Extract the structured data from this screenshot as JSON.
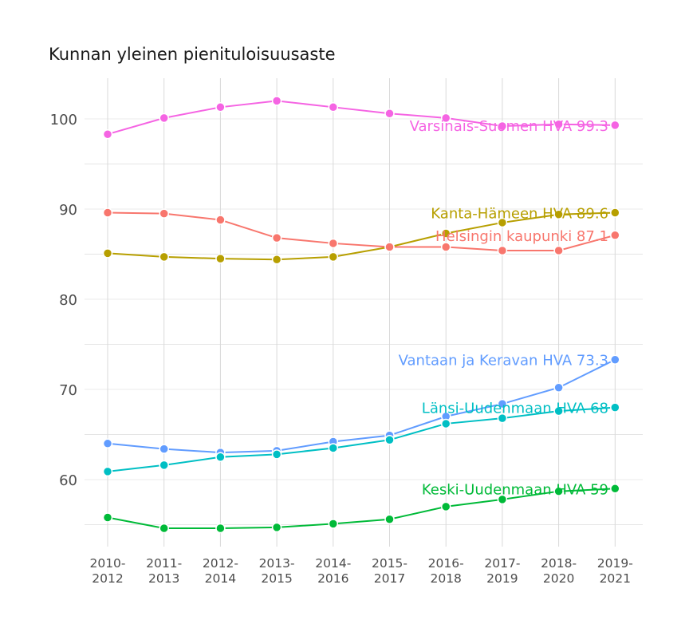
{
  "chart_data": {
    "type": "line",
    "title": "Kunnan yleinen pienituloisuusaste",
    "xlabel": "",
    "ylabel": "",
    "categories": [
      {
        "line1": "2010-",
        "line2": "2012"
      },
      {
        "line1": "2011-",
        "line2": "2013"
      },
      {
        "line1": "2012-",
        "line2": "2014"
      },
      {
        "line1": "2013-",
        "line2": "2015"
      },
      {
        "line1": "2014-",
        "line2": "2016"
      },
      {
        "line1": "2015-",
        "line2": "2017"
      },
      {
        "line1": "2016-",
        "line2": "2018"
      },
      {
        "line1": "2017-",
        "line2": "2019"
      },
      {
        "line1": "2018-",
        "line2": "2020"
      },
      {
        "line1": "2019-",
        "line2": "2021"
      }
    ],
    "yticks": [
      60,
      70,
      80,
      90,
      100
    ],
    "ylim": [
      52.5,
      105
    ],
    "grid": true,
    "legend": "direct labels at line ends",
    "series": [
      {
        "name": "Varsinais-Suomen HVA",
        "label": "Varsinais-Suomen HVA 99.3",
        "color": "#f564e3",
        "values": [
          98.3,
          100.1,
          101.3,
          102.0,
          101.3,
          100.6,
          100.1,
          99.2,
          99.4,
          99.3
        ]
      },
      {
        "name": "Kanta-Hämeen HVA",
        "label": "Kanta-Hämeen HVA 89.6",
        "color": "#b79f00",
        "values": [
          85.1,
          84.7,
          84.5,
          84.4,
          84.7,
          85.8,
          87.3,
          88.5,
          89.4,
          89.6
        ]
      },
      {
        "name": "Helsingin kaupunki",
        "label": "Helsingin kaupunki 87.1",
        "color": "#f8766d",
        "values": [
          89.6,
          89.5,
          88.8,
          86.8,
          86.2,
          85.8,
          85.8,
          85.4,
          85.4,
          87.1
        ]
      },
      {
        "name": "Vantaan ja Keravan HVA",
        "label": "Vantaan ja Keravan HVA 73.3",
        "color": "#619cff",
        "values": [
          64.0,
          63.4,
          63.0,
          63.2,
          64.2,
          64.9,
          67.0,
          68.4,
          70.2,
          73.3
        ]
      },
      {
        "name": "Länsi-Uudenmaan HVA",
        "label": "Länsi-Uudenmaan HVA 68",
        "color": "#00bfc4",
        "values": [
          60.9,
          61.6,
          62.5,
          62.8,
          63.5,
          64.4,
          66.2,
          66.8,
          67.6,
          68.0
        ]
      },
      {
        "name": "Keski-Uudenmaan HVA",
        "label": "Keski-Uudenmaan HVA 59",
        "color": "#00ba38",
        "values": [
          55.8,
          54.6,
          54.6,
          54.7,
          55.1,
          55.6,
          57.0,
          57.8,
          58.7,
          59.0
        ]
      }
    ]
  }
}
